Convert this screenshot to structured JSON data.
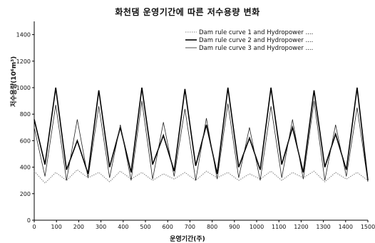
{
  "chart_data": {
    "type": "line",
    "title": "화천댐 운영기간에 따른 저수용량 변화",
    "xlabel": "운영기간(주)",
    "ylabel": "저수용량(10⁶m³)",
    "xlim": [
      0,
      1500
    ],
    "ylim": [
      0,
      1500
    ],
    "x_ticks": [
      "0",
      "100",
      "200",
      "300",
      "400",
      "500",
      "600",
      "700",
      "800",
      "900",
      "1000",
      "1100",
      "1200",
      "1300",
      "1400",
      "1500"
    ],
    "y_ticks": [
      "0",
      "200",
      "400",
      "600",
      "800",
      "1000",
      "1200",
      "1400"
    ],
    "legend_position": "top-right",
    "grid": false,
    "series": [
      {
        "name": "Dam rule curve 1 and   Hydropower ....",
        "style": "dotted",
        "color": "#8a8a8a",
        "values": [
          370,
          280,
          360,
          300,
          380,
          320,
          360,
          290,
          370,
          310,
          360,
          300,
          350,
          310,
          360,
          300,
          370,
          320,
          360,
          300,
          350,
          310,
          370,
          300,
          360,
          320,
          370,
          290,
          360,
          310,
          360,
          300
        ]
      },
      {
        "name": "Dam rule curve 2 and   Hydropower ....",
        "style": "bold",
        "color": "#000000",
        "values": [
          760,
          420,
          1000,
          380,
          600,
          350,
          980,
          400,
          700,
          360,
          1000,
          420,
          640,
          370,
          990,
          410,
          720,
          350,
          1000,
          400,
          620,
          380,
          1000,
          420,
          700,
          360,
          980,
          400,
          650,
          380,
          1000,
          300
        ]
      },
      {
        "name": "Dam rule curve 3 and   Hydropower ....",
        "style": "thin",
        "color": "#222222",
        "values": [
          700,
          330,
          870,
          300,
          760,
          320,
          860,
          320,
          720,
          300,
          900,
          310,
          740,
          330,
          840,
          300,
          770,
          310,
          880,
          320,
          700,
          300,
          860,
          320,
          760,
          310,
          900,
          300,
          720,
          330,
          850,
          290
        ]
      }
    ]
  }
}
